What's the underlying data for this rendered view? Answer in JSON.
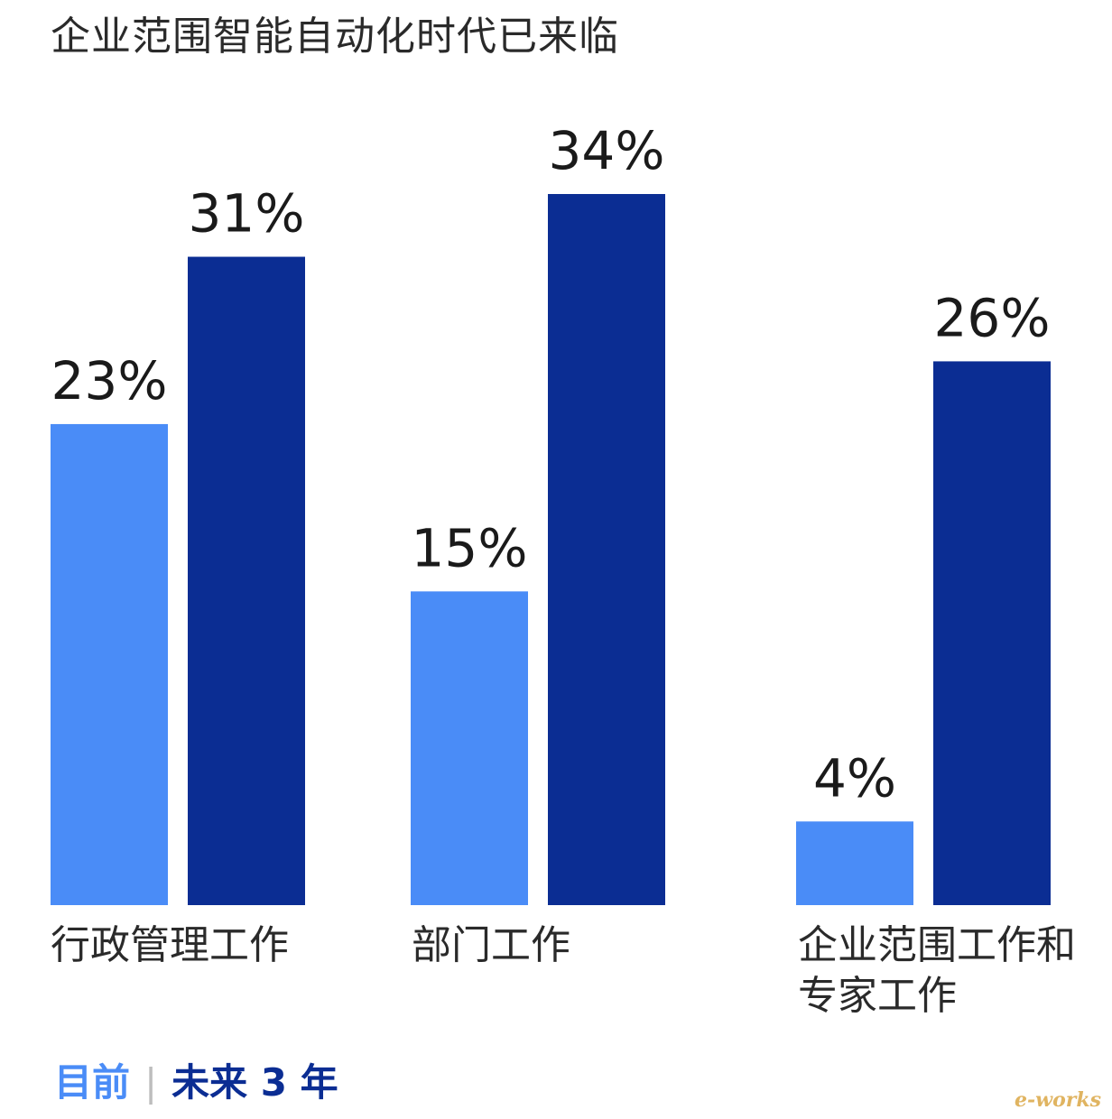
{
  "chart_data": {
    "type": "bar",
    "title": "企业范围智能自动化时代已来临",
    "categories": [
      "行政管理工作",
      "部门工作",
      "企业范围工作和\n专家工作"
    ],
    "series": [
      {
        "name": "目前",
        "values": [
          23,
          15,
          4
        ],
        "labels": [
          "23%",
          "15%",
          "4%"
        ],
        "color": "#4a8cf7"
      },
      {
        "name": "未来 3 年",
        "values": [
          31,
          34,
          26
        ],
        "labels": [
          "31%",
          "34%",
          "26%"
        ],
        "color": "#0b2d93"
      }
    ],
    "ylim": [
      0,
      34
    ],
    "grid": false,
    "legend_position": "bottom-left",
    "unit": "%"
  },
  "legend": {
    "current": "目前",
    "separator": "|",
    "future": "未来 3 年"
  },
  "watermark": "e-works"
}
